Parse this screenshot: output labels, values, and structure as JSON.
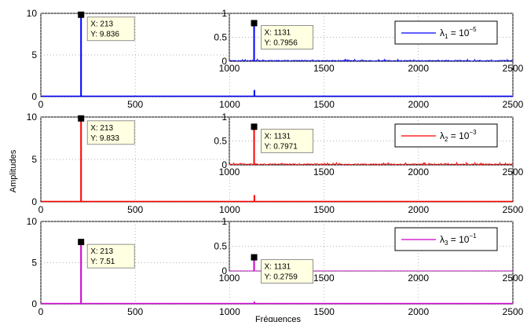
{
  "figure": {
    "xlabel": "Fréquences",
    "ylabel": "Amplitudes"
  },
  "chart_data": [
    {
      "type": "line",
      "color": "#0000ff",
      "legend": {
        "name": "λ",
        "sub": "1",
        "eq": " = 10",
        "exp": "−5"
      },
      "xlim": [
        0,
        2500
      ],
      "ylim": [
        0,
        10
      ],
      "xticks": [
        0,
        500,
        1000,
        1500,
        2000,
        2500
      ],
      "yticks": [
        0,
        5,
        10
      ],
      "peaks": [
        {
          "x": 213,
          "y": 9.836
        },
        {
          "x": 1131,
          "y": 0.7956
        }
      ],
      "datatip": {
        "x_label": "X: 213",
        "y_label": "Y: 9.836"
      },
      "inset": {
        "xlim": [
          1000,
          2500
        ],
        "ylim": [
          0,
          1
        ],
        "xticks": [
          1000,
          1500,
          2000,
          2500
        ],
        "yticks": [
          0,
          0.5,
          1
        ],
        "ytick_labels": [
          "0",
          "0.5",
          "1"
        ],
        "peak": {
          "x": 1131,
          "y": 0.7956
        },
        "noise_level": 0.04,
        "datatip": {
          "x_label": "X: 1131",
          "y_label": "Y: 0.7956"
        }
      }
    },
    {
      "type": "line",
      "color": "#ff0000",
      "legend": {
        "name": "λ",
        "sub": "2",
        "eq": " = 10",
        "exp": "−3"
      },
      "xlim": [
        0,
        2500
      ],
      "ylim": [
        0,
        10
      ],
      "xticks": [
        0,
        500,
        1000,
        1500,
        2000,
        2500
      ],
      "yticks": [
        0,
        5,
        10
      ],
      "peaks": [
        {
          "x": 213,
          "y": 9.833
        },
        {
          "x": 1131,
          "y": 0.7971
        }
      ],
      "datatip": {
        "x_label": "X: 213",
        "y_label": "Y: 9.833"
      },
      "inset": {
        "xlim": [
          1000,
          2500
        ],
        "ylim": [
          0,
          1
        ],
        "xticks": [
          1000,
          1500,
          2000,
          2500
        ],
        "yticks": [
          0,
          0.5,
          1
        ],
        "ytick_labels": [
          "0",
          "0.5",
          "1"
        ],
        "peak": {
          "x": 1131,
          "y": 0.7971
        },
        "noise_level": 0.05,
        "datatip": {
          "x_label": "X: 1131",
          "y_label": "Y: 0.7971"
        }
      }
    },
    {
      "type": "line",
      "color": "#cc00cc",
      "legend": {
        "name": "λ",
        "sub": "3",
        "eq": " = 10",
        "exp": "−1"
      },
      "xlim": [
        0,
        2500
      ],
      "ylim": [
        0,
        10
      ],
      "xticks": [
        0,
        500,
        1000,
        1500,
        2000,
        2500
      ],
      "yticks": [
        0,
        5,
        10
      ],
      "peaks": [
        {
          "x": 213,
          "y": 7.51
        },
        {
          "x": 1131,
          "y": 0.2759
        }
      ],
      "datatip": {
        "x_label": "X: 213",
        "y_label": "Y: 7.51"
      },
      "inset": {
        "xlim": [
          1000,
          2500
        ],
        "ylim": [
          0,
          1
        ],
        "xticks": [
          1000,
          1500,
          2000,
          2500
        ],
        "yticks": [
          0,
          0.5,
          1
        ],
        "ytick_labels": [
          "0",
          "0.5",
          "1"
        ],
        "peak": {
          "x": 1131,
          "y": 0.2759
        },
        "noise_level": 0.0,
        "datatip": {
          "x_label": "X: 1131",
          "y_label": "Y: 0.2759"
        }
      }
    }
  ]
}
